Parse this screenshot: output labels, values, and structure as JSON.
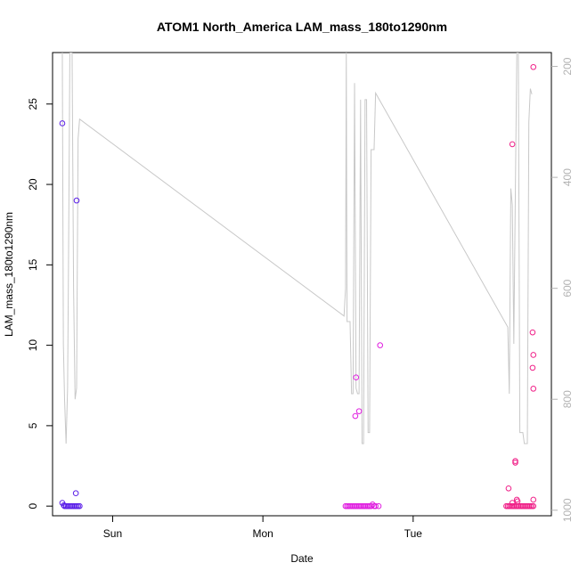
{
  "chart_data": {
    "type": "scatter",
    "title": "ATOM1 North_America LAM_mass_180to1290nm",
    "xlabel": "Date",
    "ylabel": "LAM_mass_180to1290nm",
    "x_ticks": [
      "Sun",
      "Mon",
      "Tue"
    ],
    "x_tick_positions_days": [
      1,
      2,
      3
    ],
    "xlim_days": [
      0.6,
      3.92
    ],
    "ylim": [
      -0.6,
      28.2
    ],
    "y_ticks": [
      0,
      5,
      10,
      15,
      20,
      25
    ],
    "y2_ticks": [
      200,
      400,
      600,
      800,
      1000
    ],
    "y2lim": [
      1010,
      175
    ],
    "grid": false,
    "series": [
      {
        "kind": "points",
        "color": "#5a1ee8",
        "points": [
          [
            0.665,
            23.8
          ],
          [
            0.76,
            19.0
          ],
          [
            0.755,
            0.8
          ],
          [
            0.665,
            0.2
          ],
          [
            0.675,
            0.05
          ],
          [
            0.68,
            0
          ],
          [
            0.69,
            0
          ],
          [
            0.7,
            0
          ],
          [
            0.71,
            0
          ],
          [
            0.72,
            0
          ],
          [
            0.73,
            0
          ],
          [
            0.74,
            0
          ],
          [
            0.75,
            0
          ],
          [
            0.76,
            0
          ],
          [
            0.77,
            0
          ],
          [
            0.78,
            0
          ]
        ]
      },
      {
        "kind": "points",
        "color": "#e020e0",
        "points": [
          [
            2.62,
            8.0
          ],
          [
            2.615,
            5.6
          ],
          [
            2.64,
            5.9
          ],
          [
            2.78,
            10.0
          ],
          [
            2.55,
            0
          ],
          [
            2.56,
            0
          ],
          [
            2.57,
            0
          ],
          [
            2.58,
            0
          ],
          [
            2.59,
            0
          ],
          [
            2.6,
            0
          ],
          [
            2.61,
            0
          ],
          [
            2.62,
            0
          ],
          [
            2.63,
            0
          ],
          [
            2.64,
            0
          ],
          [
            2.65,
            0
          ],
          [
            2.66,
            0
          ],
          [
            2.67,
            0
          ],
          [
            2.68,
            0
          ],
          [
            2.69,
            0
          ],
          [
            2.7,
            0
          ],
          [
            2.71,
            0
          ],
          [
            2.72,
            0
          ],
          [
            2.73,
            0.1
          ],
          [
            2.74,
            0
          ],
          [
            2.75,
            0
          ],
          [
            2.77,
            0
          ]
        ]
      },
      {
        "kind": "points",
        "color": "#f02088",
        "points": [
          [
            3.66,
            22.5
          ],
          [
            3.8,
            27.3
          ],
          [
            3.795,
            10.8
          ],
          [
            3.8,
            9.4
          ],
          [
            3.795,
            8.6
          ],
          [
            3.8,
            7.3
          ],
          [
            3.68,
            2.8
          ],
          [
            3.68,
            2.7
          ],
          [
            3.635,
            1.1
          ],
          [
            3.69,
            0.4
          ],
          [
            3.695,
            0.3
          ],
          [
            3.66,
            0.2
          ],
          [
            3.8,
            0.4
          ],
          [
            3.62,
            0
          ],
          [
            3.63,
            0
          ],
          [
            3.64,
            0
          ],
          [
            3.65,
            0
          ],
          [
            3.66,
            0
          ],
          [
            3.67,
            0
          ],
          [
            3.68,
            0
          ],
          [
            3.69,
            0
          ],
          [
            3.7,
            0
          ],
          [
            3.71,
            0
          ],
          [
            3.72,
            0
          ],
          [
            3.73,
            0
          ],
          [
            3.74,
            0
          ],
          [
            3.75,
            0
          ],
          [
            3.76,
            0
          ],
          [
            3.77,
            0
          ],
          [
            3.78,
            0
          ],
          [
            3.79,
            0
          ],
          [
            3.8,
            0
          ]
        ]
      },
      {
        "kind": "line",
        "axis": "right",
        "color": "#c8c8c8",
        "points": [
          [
            0.665,
            175
          ],
          [
            0.672,
            700
          ],
          [
            0.68,
            800
          ],
          [
            0.69,
            880
          ],
          [
            0.7,
            780
          ],
          [
            0.705,
            600
          ],
          [
            0.71,
            400
          ],
          [
            0.715,
            175
          ],
          [
            0.73,
            175
          ],
          [
            0.74,
            600
          ],
          [
            0.75,
            800
          ],
          [
            0.76,
            780
          ],
          [
            0.77,
            330
          ],
          [
            0.78,
            295
          ],
          [
            2.54,
            650
          ],
          [
            2.55,
            600
          ],
          [
            2.555,
            175
          ],
          [
            2.56,
            660
          ],
          [
            2.57,
            660
          ],
          [
            2.58,
            660
          ],
          [
            2.59,
            790
          ],
          [
            2.6,
            790
          ],
          [
            2.61,
            230
          ],
          [
            2.62,
            780
          ],
          [
            2.63,
            790
          ],
          [
            2.64,
            790
          ],
          [
            2.65,
            260
          ],
          [
            2.66,
            880
          ],
          [
            2.67,
            880
          ],
          [
            2.68,
            260
          ],
          [
            2.69,
            260
          ],
          [
            2.7,
            860
          ],
          [
            2.71,
            860
          ],
          [
            2.72,
            350
          ],
          [
            2.73,
            350
          ],
          [
            2.74,
            350
          ],
          [
            2.75,
            248
          ],
          [
            3.63,
            670
          ],
          [
            3.64,
            790
          ],
          [
            3.65,
            420
          ],
          [
            3.66,
            450
          ],
          [
            3.67,
            700
          ],
          [
            3.68,
            430
          ],
          [
            3.69,
            175
          ],
          [
            3.7,
            175
          ],
          [
            3.71,
            860
          ],
          [
            3.72,
            860
          ],
          [
            3.73,
            860
          ],
          [
            3.74,
            880
          ],
          [
            3.75,
            880
          ],
          [
            3.76,
            880
          ],
          [
            3.77,
            300
          ],
          [
            3.78,
            240
          ],
          [
            3.79,
            250
          ]
        ]
      }
    ]
  }
}
